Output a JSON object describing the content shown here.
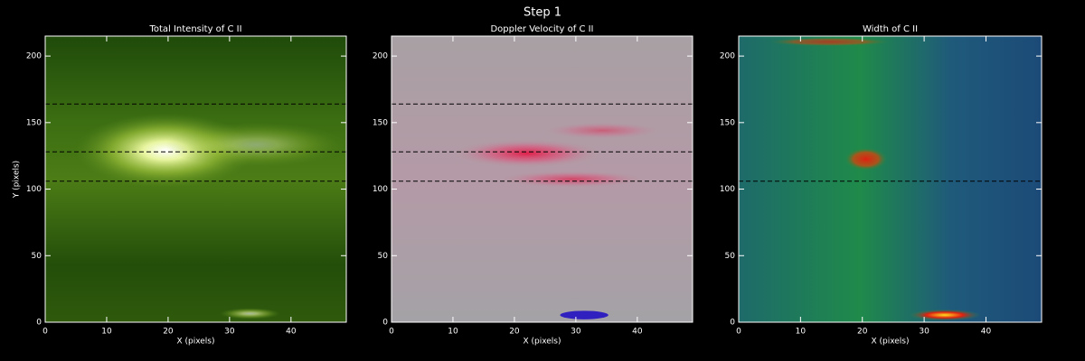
{
  "title": "Step 1",
  "chart_data": [
    {
      "type": "heatmap",
      "title": "Total Intensity of C II",
      "xlabel": "X (pixels)",
      "ylabel": "Y (pixels)",
      "xlim": [
        0,
        49
      ],
      "ylim": [
        0,
        215
      ],
      "xticks": [
        0,
        10,
        20,
        30,
        40
      ],
      "yticks": [
        0,
        50,
        100,
        150,
        200
      ],
      "hlines": [
        164,
        128,
        106
      ]
    },
    {
      "type": "heatmap",
      "title": "Doppler Velocity of C II",
      "xlabel": "X (pixels)",
      "xlim": [
        0,
        49
      ],
      "ylim": [
        0,
        215
      ],
      "xticks": [
        0,
        10,
        20,
        30,
        40
      ],
      "yticks": [
        0,
        50,
        100,
        150,
        200
      ],
      "hlines": [
        164,
        128,
        106
      ]
    },
    {
      "type": "heatmap",
      "title": "Width of C II",
      "xlabel": "X (pixels)",
      "xlim": [
        0,
        49
      ],
      "ylim": [
        0,
        215
      ],
      "xticks": [
        0,
        10,
        20,
        30,
        40
      ],
      "yticks": [
        0,
        50,
        100,
        150,
        200
      ],
      "hlines": [
        106
      ]
    }
  ]
}
